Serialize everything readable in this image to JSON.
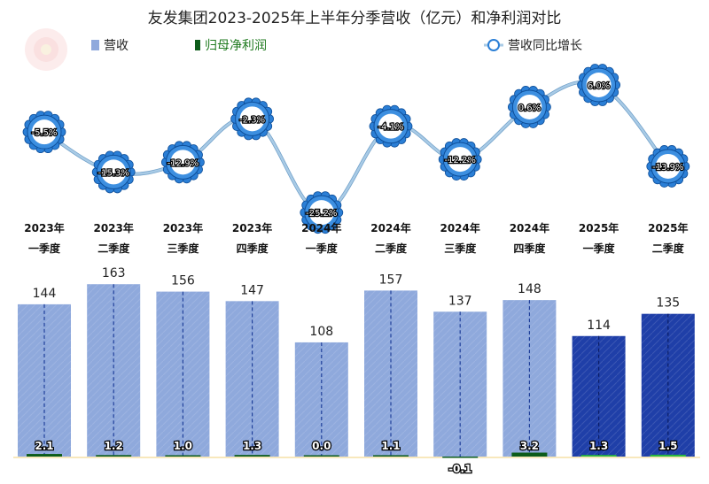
{
  "chart_data": {
    "type": "bar",
    "title": "友发集团2023-2025年上半年分季营收（亿元）和净利润对比",
    "categories": [
      [
        "2023年",
        "一季度"
      ],
      [
        "2023年",
        "二季度"
      ],
      [
        "2023年",
        "三季度"
      ],
      [
        "2023年",
        "四季度"
      ],
      [
        "2024年",
        "一季度"
      ],
      [
        "2024年",
        "二季度"
      ],
      [
        "2024年",
        "三季度"
      ],
      [
        "2024年",
        "四季度"
      ],
      [
        "2025年",
        "一季度"
      ],
      [
        "2025年",
        "二季度"
      ]
    ],
    "series": [
      {
        "name": "营收",
        "type": "bar",
        "values": [
          144,
          163,
          156,
          147,
          108,
          157,
          137,
          148,
          114,
          135
        ],
        "labels": [
          "144",
          "163",
          "156",
          "147",
          "108",
          "157",
          "137",
          "148",
          "114",
          "135"
        ]
      },
      {
        "name": "归母净利润",
        "type": "bar",
        "values": [
          2.1,
          1.2,
          1.0,
          1.3,
          0.0,
          1.1,
          -0.1,
          3.2,
          1.3,
          1.5
        ],
        "labels": [
          "2.1",
          "1.2",
          "1.0",
          "1.3",
          "0.0",
          "1.1",
          "-0.1",
          "3.2",
          "1.3",
          "1.5"
        ]
      },
      {
        "name": "营收同比增长",
        "type": "line",
        "values": [
          -5.5,
          -15.3,
          -12.9,
          -2.3,
          -25.2,
          -4.1,
          -12.2,
          0.6,
          6.0,
          -13.9
        ],
        "labels": [
          "-5.5%",
          "-15.3%",
          "-12.9%",
          "-2.3%",
          "-25.2%",
          "-4.1%",
          "-12.2%",
          "0.6%",
          "6.0%",
          "-13.9%"
        ]
      }
    ],
    "legend_placement": "top",
    "grid": false,
    "colors": {
      "revenue_2023_2024": "#8fa9dc",
      "revenue_2025": "#1f3fa8",
      "net_profit": "#0d5c1a",
      "net_profit_2025": "#2db83d",
      "yoy_line": "#a9cbe6",
      "yoy_marker": "#2b7fd6"
    }
  }
}
